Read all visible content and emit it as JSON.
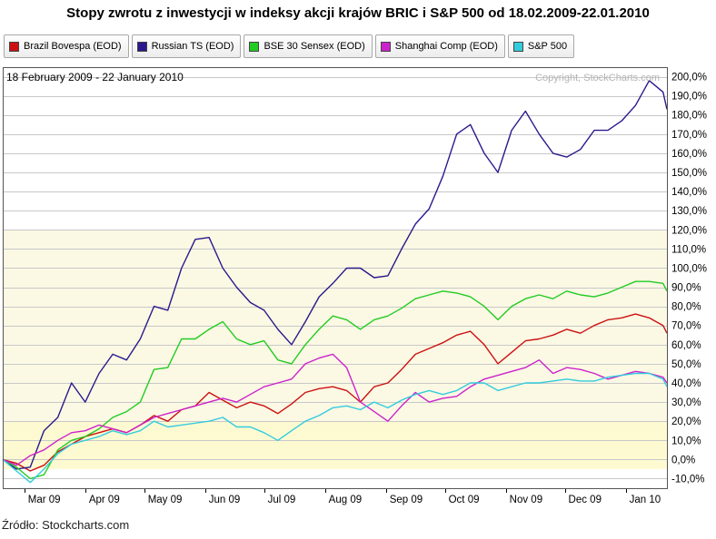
{
  "title": "Stopy zwrotu z inwestycji w indeksy akcji krajów BRIC i S&P 500 od 18.02.2009-22.01.2010",
  "source": "Źródło: Stockcharts.com",
  "chart_data": {
    "type": "line",
    "subtitle": "18 February 2009 - 22 January 2010",
    "copyright": "Copyright, StockCharts.com",
    "ylim": [
      -15,
      205
    ],
    "y_ticks": [
      -10,
      0,
      10,
      20,
      30,
      40,
      50,
      60,
      70,
      80,
      90,
      100,
      110,
      120,
      130,
      140,
      150,
      160,
      170,
      180,
      190,
      200
    ],
    "y_tick_labels": [
      "-10,0%",
      "0,0%",
      "10,0%",
      "20,0%",
      "30,0%",
      "40,0%",
      "50,0%",
      "60,0%",
      "70,0%",
      "80,0%",
      "90,0%",
      "100,0%",
      "110,0%",
      "120,0%",
      "130,0%",
      "140,0%",
      "150,0%",
      "160,0%",
      "170,0%",
      "180,0%",
      "190,0%",
      "200,0%"
    ],
    "x_tick_labels": [
      "Mar 09",
      "Apr 09",
      "May 09",
      "Jun 09",
      "Jul 09",
      "Aug 09",
      "Sep 09",
      "Oct 09",
      "Nov 09",
      "Dec 09",
      "Jan 10"
    ],
    "x_tick_dates": [
      "2009-03-01",
      "2009-04-01",
      "2009-05-01",
      "2009-06-01",
      "2009-07-01",
      "2009-08-01",
      "2009-09-01",
      "2009-10-01",
      "2009-11-01",
      "2009-12-01",
      "2010-01-01"
    ],
    "x_range": [
      "2009-02-18",
      "2010-01-22"
    ],
    "grid": true,
    "legend_position": "top",
    "series": [
      {
        "name": "Brazil Bovespa (EOD)",
        "color": "#cc1111",
        "points": [
          [
            "2009-02-18",
            0
          ],
          [
            "2009-02-25",
            -2
          ],
          [
            "2009-03-04",
            -6
          ],
          [
            "2009-03-11",
            -3
          ],
          [
            "2009-03-18",
            4
          ],
          [
            "2009-03-25",
            8
          ],
          [
            "2009-04-01",
            12
          ],
          [
            "2009-04-08",
            14
          ],
          [
            "2009-04-15",
            16
          ],
          [
            "2009-04-22",
            14
          ],
          [
            "2009-04-29",
            18
          ],
          [
            "2009-05-06",
            23
          ],
          [
            "2009-05-13",
            20
          ],
          [
            "2009-05-20",
            26
          ],
          [
            "2009-05-27",
            28
          ],
          [
            "2009-06-03",
            35
          ],
          [
            "2009-06-10",
            31
          ],
          [
            "2009-06-17",
            27
          ],
          [
            "2009-06-24",
            30
          ],
          [
            "2009-07-01",
            28
          ],
          [
            "2009-07-08",
            24
          ],
          [
            "2009-07-15",
            29
          ],
          [
            "2009-07-22",
            35
          ],
          [
            "2009-07-29",
            37
          ],
          [
            "2009-08-05",
            38
          ],
          [
            "2009-08-12",
            36
          ],
          [
            "2009-08-19",
            30
          ],
          [
            "2009-08-26",
            38
          ],
          [
            "2009-09-02",
            40
          ],
          [
            "2009-09-09",
            47
          ],
          [
            "2009-09-16",
            55
          ],
          [
            "2009-09-23",
            58
          ],
          [
            "2009-09-30",
            61
          ],
          [
            "2009-10-07",
            65
          ],
          [
            "2009-10-14",
            67
          ],
          [
            "2009-10-21",
            60
          ],
          [
            "2009-10-28",
            50
          ],
          [
            "2009-11-04",
            56
          ],
          [
            "2009-11-11",
            62
          ],
          [
            "2009-11-18",
            63
          ],
          [
            "2009-11-25",
            65
          ],
          [
            "2009-12-02",
            68
          ],
          [
            "2009-12-09",
            66
          ],
          [
            "2009-12-16",
            70
          ],
          [
            "2009-12-23",
            73
          ],
          [
            "2009-12-30",
            74
          ],
          [
            "2010-01-06",
            76
          ],
          [
            "2010-01-13",
            74
          ],
          [
            "2010-01-20",
            70
          ],
          [
            "2010-01-22",
            66
          ]
        ]
      },
      {
        "name": "Russian TS (EOD)",
        "color": "#2a1a8c",
        "points": [
          [
            "2009-02-18",
            0
          ],
          [
            "2009-02-25",
            -5
          ],
          [
            "2009-03-04",
            -4
          ],
          [
            "2009-03-11",
            15
          ],
          [
            "2009-03-18",
            22
          ],
          [
            "2009-03-25",
            40
          ],
          [
            "2009-04-01",
            30
          ],
          [
            "2009-04-08",
            45
          ],
          [
            "2009-04-15",
            55
          ],
          [
            "2009-04-22",
            52
          ],
          [
            "2009-04-29",
            63
          ],
          [
            "2009-05-06",
            80
          ],
          [
            "2009-05-13",
            78
          ],
          [
            "2009-05-20",
            100
          ],
          [
            "2009-05-27",
            115
          ],
          [
            "2009-06-03",
            116
          ],
          [
            "2009-06-10",
            100
          ],
          [
            "2009-06-17",
            90
          ],
          [
            "2009-06-24",
            82
          ],
          [
            "2009-07-01",
            78
          ],
          [
            "2009-07-08",
            68
          ],
          [
            "2009-07-15",
            60
          ],
          [
            "2009-07-22",
            72
          ],
          [
            "2009-07-29",
            85
          ],
          [
            "2009-08-05",
            92
          ],
          [
            "2009-08-12",
            100
          ],
          [
            "2009-08-19",
            100
          ],
          [
            "2009-08-26",
            95
          ],
          [
            "2009-09-02",
            96
          ],
          [
            "2009-09-09",
            110
          ],
          [
            "2009-09-16",
            123
          ],
          [
            "2009-09-23",
            131
          ],
          [
            "2009-09-30",
            148
          ],
          [
            "2009-10-07",
            170
          ],
          [
            "2009-10-14",
            175
          ],
          [
            "2009-10-21",
            160
          ],
          [
            "2009-10-28",
            150
          ],
          [
            "2009-11-04",
            172
          ],
          [
            "2009-11-11",
            182
          ],
          [
            "2009-11-18",
            170
          ],
          [
            "2009-11-25",
            160
          ],
          [
            "2009-12-02",
            158
          ],
          [
            "2009-12-09",
            162
          ],
          [
            "2009-12-16",
            172
          ],
          [
            "2009-12-23",
            172
          ],
          [
            "2009-12-30",
            177
          ],
          [
            "2010-01-06",
            185
          ],
          [
            "2010-01-13",
            198
          ],
          [
            "2010-01-20",
            192
          ],
          [
            "2010-01-22",
            183
          ]
        ]
      },
      {
        "name": "BSE 30 Sensex (EOD)",
        "color": "#22cc22",
        "points": [
          [
            "2009-02-18",
            0
          ],
          [
            "2009-02-25",
            -4
          ],
          [
            "2009-03-04",
            -10
          ],
          [
            "2009-03-11",
            -8
          ],
          [
            "2009-03-18",
            5
          ],
          [
            "2009-03-25",
            10
          ],
          [
            "2009-04-01",
            12
          ],
          [
            "2009-04-08",
            16
          ],
          [
            "2009-04-15",
            22
          ],
          [
            "2009-04-22",
            25
          ],
          [
            "2009-04-29",
            30
          ],
          [
            "2009-05-06",
            47
          ],
          [
            "2009-05-13",
            48
          ],
          [
            "2009-05-20",
            63
          ],
          [
            "2009-05-27",
            63
          ],
          [
            "2009-06-03",
            68
          ],
          [
            "2009-06-10",
            72
          ],
          [
            "2009-06-17",
            63
          ],
          [
            "2009-06-24",
            60
          ],
          [
            "2009-07-01",
            62
          ],
          [
            "2009-07-08",
            52
          ],
          [
            "2009-07-15",
            50
          ],
          [
            "2009-07-22",
            60
          ],
          [
            "2009-07-29",
            68
          ],
          [
            "2009-08-05",
            75
          ],
          [
            "2009-08-12",
            73
          ],
          [
            "2009-08-19",
            68
          ],
          [
            "2009-08-26",
            73
          ],
          [
            "2009-09-02",
            75
          ],
          [
            "2009-09-09",
            79
          ],
          [
            "2009-09-16",
            84
          ],
          [
            "2009-09-23",
            86
          ],
          [
            "2009-09-30",
            88
          ],
          [
            "2009-10-07",
            87
          ],
          [
            "2009-10-14",
            85
          ],
          [
            "2009-10-21",
            80
          ],
          [
            "2009-10-28",
            73
          ],
          [
            "2009-11-04",
            80
          ],
          [
            "2009-11-11",
            84
          ],
          [
            "2009-11-18",
            86
          ],
          [
            "2009-11-25",
            84
          ],
          [
            "2009-12-02",
            88
          ],
          [
            "2009-12-09",
            86
          ],
          [
            "2009-12-16",
            85
          ],
          [
            "2009-12-23",
            87
          ],
          [
            "2009-12-30",
            90
          ],
          [
            "2010-01-06",
            93
          ],
          [
            "2010-01-13",
            93
          ],
          [
            "2010-01-20",
            92
          ],
          [
            "2010-01-22",
            88
          ]
        ]
      },
      {
        "name": "Shanghai Comp (EOD)",
        "color": "#cc22cc",
        "points": [
          [
            "2009-02-18",
            0
          ],
          [
            "2009-02-25",
            -3
          ],
          [
            "2009-03-04",
            2
          ],
          [
            "2009-03-11",
            5
          ],
          [
            "2009-03-18",
            10
          ],
          [
            "2009-03-25",
            14
          ],
          [
            "2009-04-01",
            15
          ],
          [
            "2009-04-08",
            18
          ],
          [
            "2009-04-15",
            16
          ],
          [
            "2009-04-22",
            14
          ],
          [
            "2009-04-29",
            18
          ],
          [
            "2009-05-06",
            22
          ],
          [
            "2009-05-13",
            24
          ],
          [
            "2009-05-20",
            26
          ],
          [
            "2009-05-27",
            28
          ],
          [
            "2009-06-03",
            30
          ],
          [
            "2009-06-10",
            32
          ],
          [
            "2009-06-17",
            30
          ],
          [
            "2009-06-24",
            34
          ],
          [
            "2009-07-01",
            38
          ],
          [
            "2009-07-08",
            40
          ],
          [
            "2009-07-15",
            42
          ],
          [
            "2009-07-22",
            50
          ],
          [
            "2009-07-29",
            53
          ],
          [
            "2009-08-05",
            55
          ],
          [
            "2009-08-12",
            48
          ],
          [
            "2009-08-19",
            30
          ],
          [
            "2009-08-26",
            25
          ],
          [
            "2009-09-02",
            20
          ],
          [
            "2009-09-09",
            28
          ],
          [
            "2009-09-16",
            35
          ],
          [
            "2009-09-23",
            30
          ],
          [
            "2009-09-30",
            32
          ],
          [
            "2009-10-07",
            33
          ],
          [
            "2009-10-14",
            38
          ],
          [
            "2009-10-21",
            42
          ],
          [
            "2009-10-28",
            44
          ],
          [
            "2009-11-04",
            46
          ],
          [
            "2009-11-11",
            48
          ],
          [
            "2009-11-18",
            52
          ],
          [
            "2009-11-25",
            45
          ],
          [
            "2009-12-02",
            48
          ],
          [
            "2009-12-09",
            47
          ],
          [
            "2009-12-16",
            45
          ],
          [
            "2009-12-23",
            42
          ],
          [
            "2009-12-30",
            44
          ],
          [
            "2010-01-06",
            46
          ],
          [
            "2010-01-13",
            45
          ],
          [
            "2010-01-20",
            43
          ],
          [
            "2010-01-22",
            40
          ]
        ]
      },
      {
        "name": "S&P 500",
        "color": "#33ccdd",
        "points": [
          [
            "2009-02-18",
            0
          ],
          [
            "2009-02-25",
            -6
          ],
          [
            "2009-03-04",
            -12
          ],
          [
            "2009-03-11",
            -5
          ],
          [
            "2009-03-18",
            3
          ],
          [
            "2009-03-25",
            8
          ],
          [
            "2009-04-01",
            10
          ],
          [
            "2009-04-08",
            12
          ],
          [
            "2009-04-15",
            15
          ],
          [
            "2009-04-22",
            13
          ],
          [
            "2009-04-29",
            15
          ],
          [
            "2009-05-06",
            20
          ],
          [
            "2009-05-13",
            17
          ],
          [
            "2009-05-20",
            18
          ],
          [
            "2009-05-27",
            19
          ],
          [
            "2009-06-03",
            20
          ],
          [
            "2009-06-10",
            22
          ],
          [
            "2009-06-17",
            17
          ],
          [
            "2009-06-24",
            17
          ],
          [
            "2009-07-01",
            14
          ],
          [
            "2009-07-08",
            10
          ],
          [
            "2009-07-15",
            15
          ],
          [
            "2009-07-22",
            20
          ],
          [
            "2009-07-29",
            23
          ],
          [
            "2009-08-05",
            27
          ],
          [
            "2009-08-12",
            28
          ],
          [
            "2009-08-19",
            26
          ],
          [
            "2009-08-26",
            30
          ],
          [
            "2009-09-02",
            27
          ],
          [
            "2009-09-09",
            31
          ],
          [
            "2009-09-16",
            34
          ],
          [
            "2009-09-23",
            36
          ],
          [
            "2009-09-30",
            34
          ],
          [
            "2009-10-07",
            36
          ],
          [
            "2009-10-14",
            40
          ],
          [
            "2009-10-21",
            40
          ],
          [
            "2009-10-28",
            36
          ],
          [
            "2009-11-04",
            38
          ],
          [
            "2009-11-11",
            40
          ],
          [
            "2009-11-18",
            40
          ],
          [
            "2009-11-25",
            41
          ],
          [
            "2009-12-02",
            42
          ],
          [
            "2009-12-09",
            41
          ],
          [
            "2009-12-16",
            41
          ],
          [
            "2009-12-23",
            43
          ],
          [
            "2009-12-30",
            44
          ],
          [
            "2010-01-06",
            45
          ],
          [
            "2010-01-13",
            45
          ],
          [
            "2010-01-20",
            42
          ],
          [
            "2010-01-22",
            38
          ]
        ]
      }
    ]
  }
}
